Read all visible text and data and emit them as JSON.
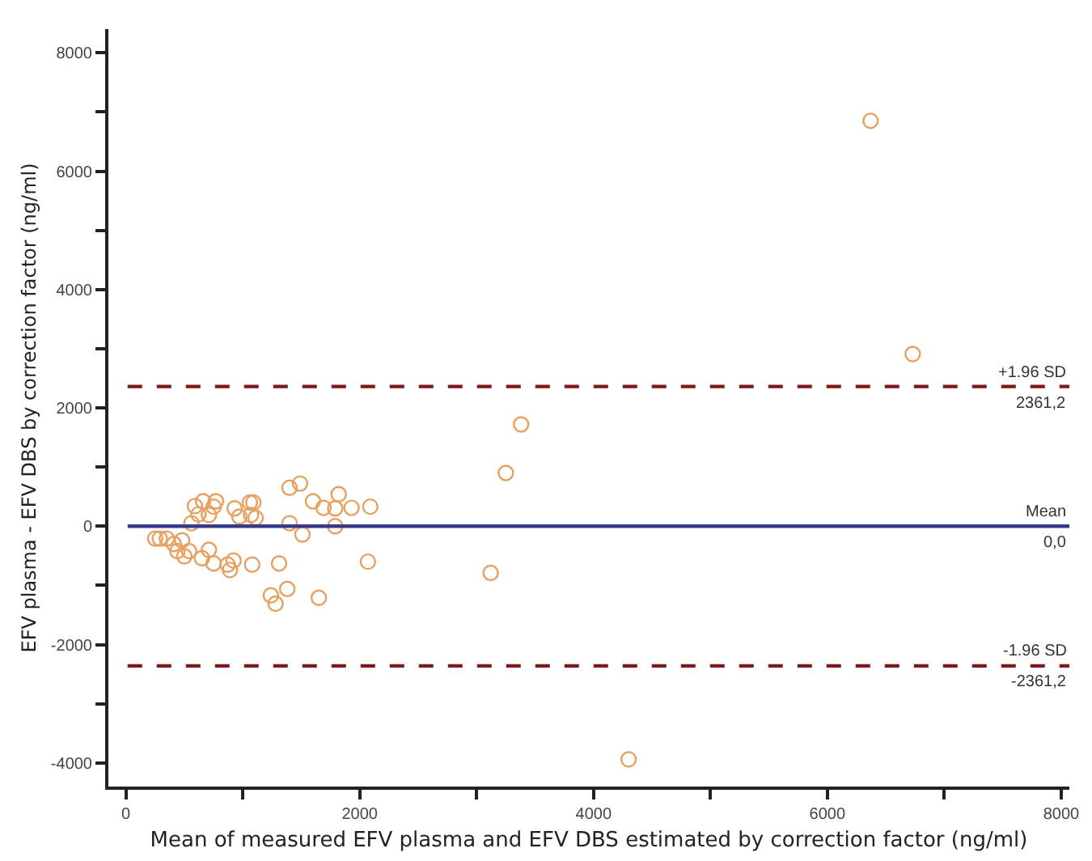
{
  "chart_data": {
    "type": "scatter",
    "xlabel": "Mean of measured EFV plasma and EFV DBS estimated by correction factor (ng/ml)",
    "ylabel": "EFV plasma - EFV DBS by correction factor (ng/ml)",
    "xlim": [
      -150,
      8070
    ],
    "ylim": [
      -4400,
      8400
    ],
    "xticks": [
      0,
      {
        "value": 1000,
        "label": null
      },
      2000,
      {
        "value": 3000,
        "label": null
      },
      4000,
      {
        "value": 5000,
        "label": null
      },
      6000,
      {
        "value": 7000,
        "label": null
      },
      8000
    ],
    "yticks": [
      -4000,
      {
        "value": -3000,
        "label": null
      },
      -2000,
      {
        "value": -1000,
        "label": null
      },
      0,
      {
        "value": 1000,
        "label": null
      },
      2000,
      {
        "value": 3000,
        "label": null
      },
      4000,
      {
        "value": 5000,
        "label": null
      },
      6000,
      {
        "value": 7000,
        "label": null
      },
      8000
    ],
    "marker": "circle",
    "series": [
      {
        "color": "#e8a060",
        "x": [
          250,
          290,
          350,
          410,
          440,
          480,
          500,
          540,
          590,
          620,
          560,
          650,
          660,
          710,
          710,
          750,
          770,
          750,
          870,
          890,
          920,
          930,
          970,
          1060,
          1070,
          1090,
          1110,
          1080,
          1240,
          1280,
          1310,
          1380,
          1400,
          1400,
          1490,
          1510,
          1600,
          1650,
          1690,
          1790,
          1790,
          1820,
          1930,
          2090,
          2070,
          3120,
          3250,
          3380,
          4300,
          6370,
          6730
        ],
        "values": [
          -210,
          -210,
          -210,
          -300,
          -420,
          -240,
          -510,
          -420,
          340,
          200,
          50,
          -540,
          420,
          -400,
          190,
          330,
          420,
          -630,
          -650,
          -740,
          -580,
          300,
          160,
          400,
          190,
          400,
          140,
          -650,
          -1170,
          -1310,
          -630,
          -1060,
          650,
          50,
          720,
          -140,
          420,
          -1210,
          310,
          0,
          300,
          540,
          310,
          330,
          -600,
          -790,
          900,
          1720,
          -3940,
          6850,
          2910
        ]
      }
    ],
    "ref_lines": [
      {
        "axis": "y",
        "value": 2361.2,
        "label": "+1.96 SD",
        "color": "#7b1a1a",
        "line_style": "dashed"
      },
      {
        "axis": "y",
        "value": 0,
        "label": "Mean",
        "color": "#3a3a8c",
        "line_style": "solid"
      },
      {
        "axis": "y",
        "value": -2361.2,
        "label": "-1.96 SD",
        "color": "#7b1a1a",
        "line_style": "dashed"
      }
    ],
    "annotations": [
      {
        "text": "2361,2",
        "y": 2361.2
      },
      {
        "text": "0,0",
        "y": 0
      },
      {
        "text": "-2361,2",
        "y": -2361.2
      }
    ]
  }
}
